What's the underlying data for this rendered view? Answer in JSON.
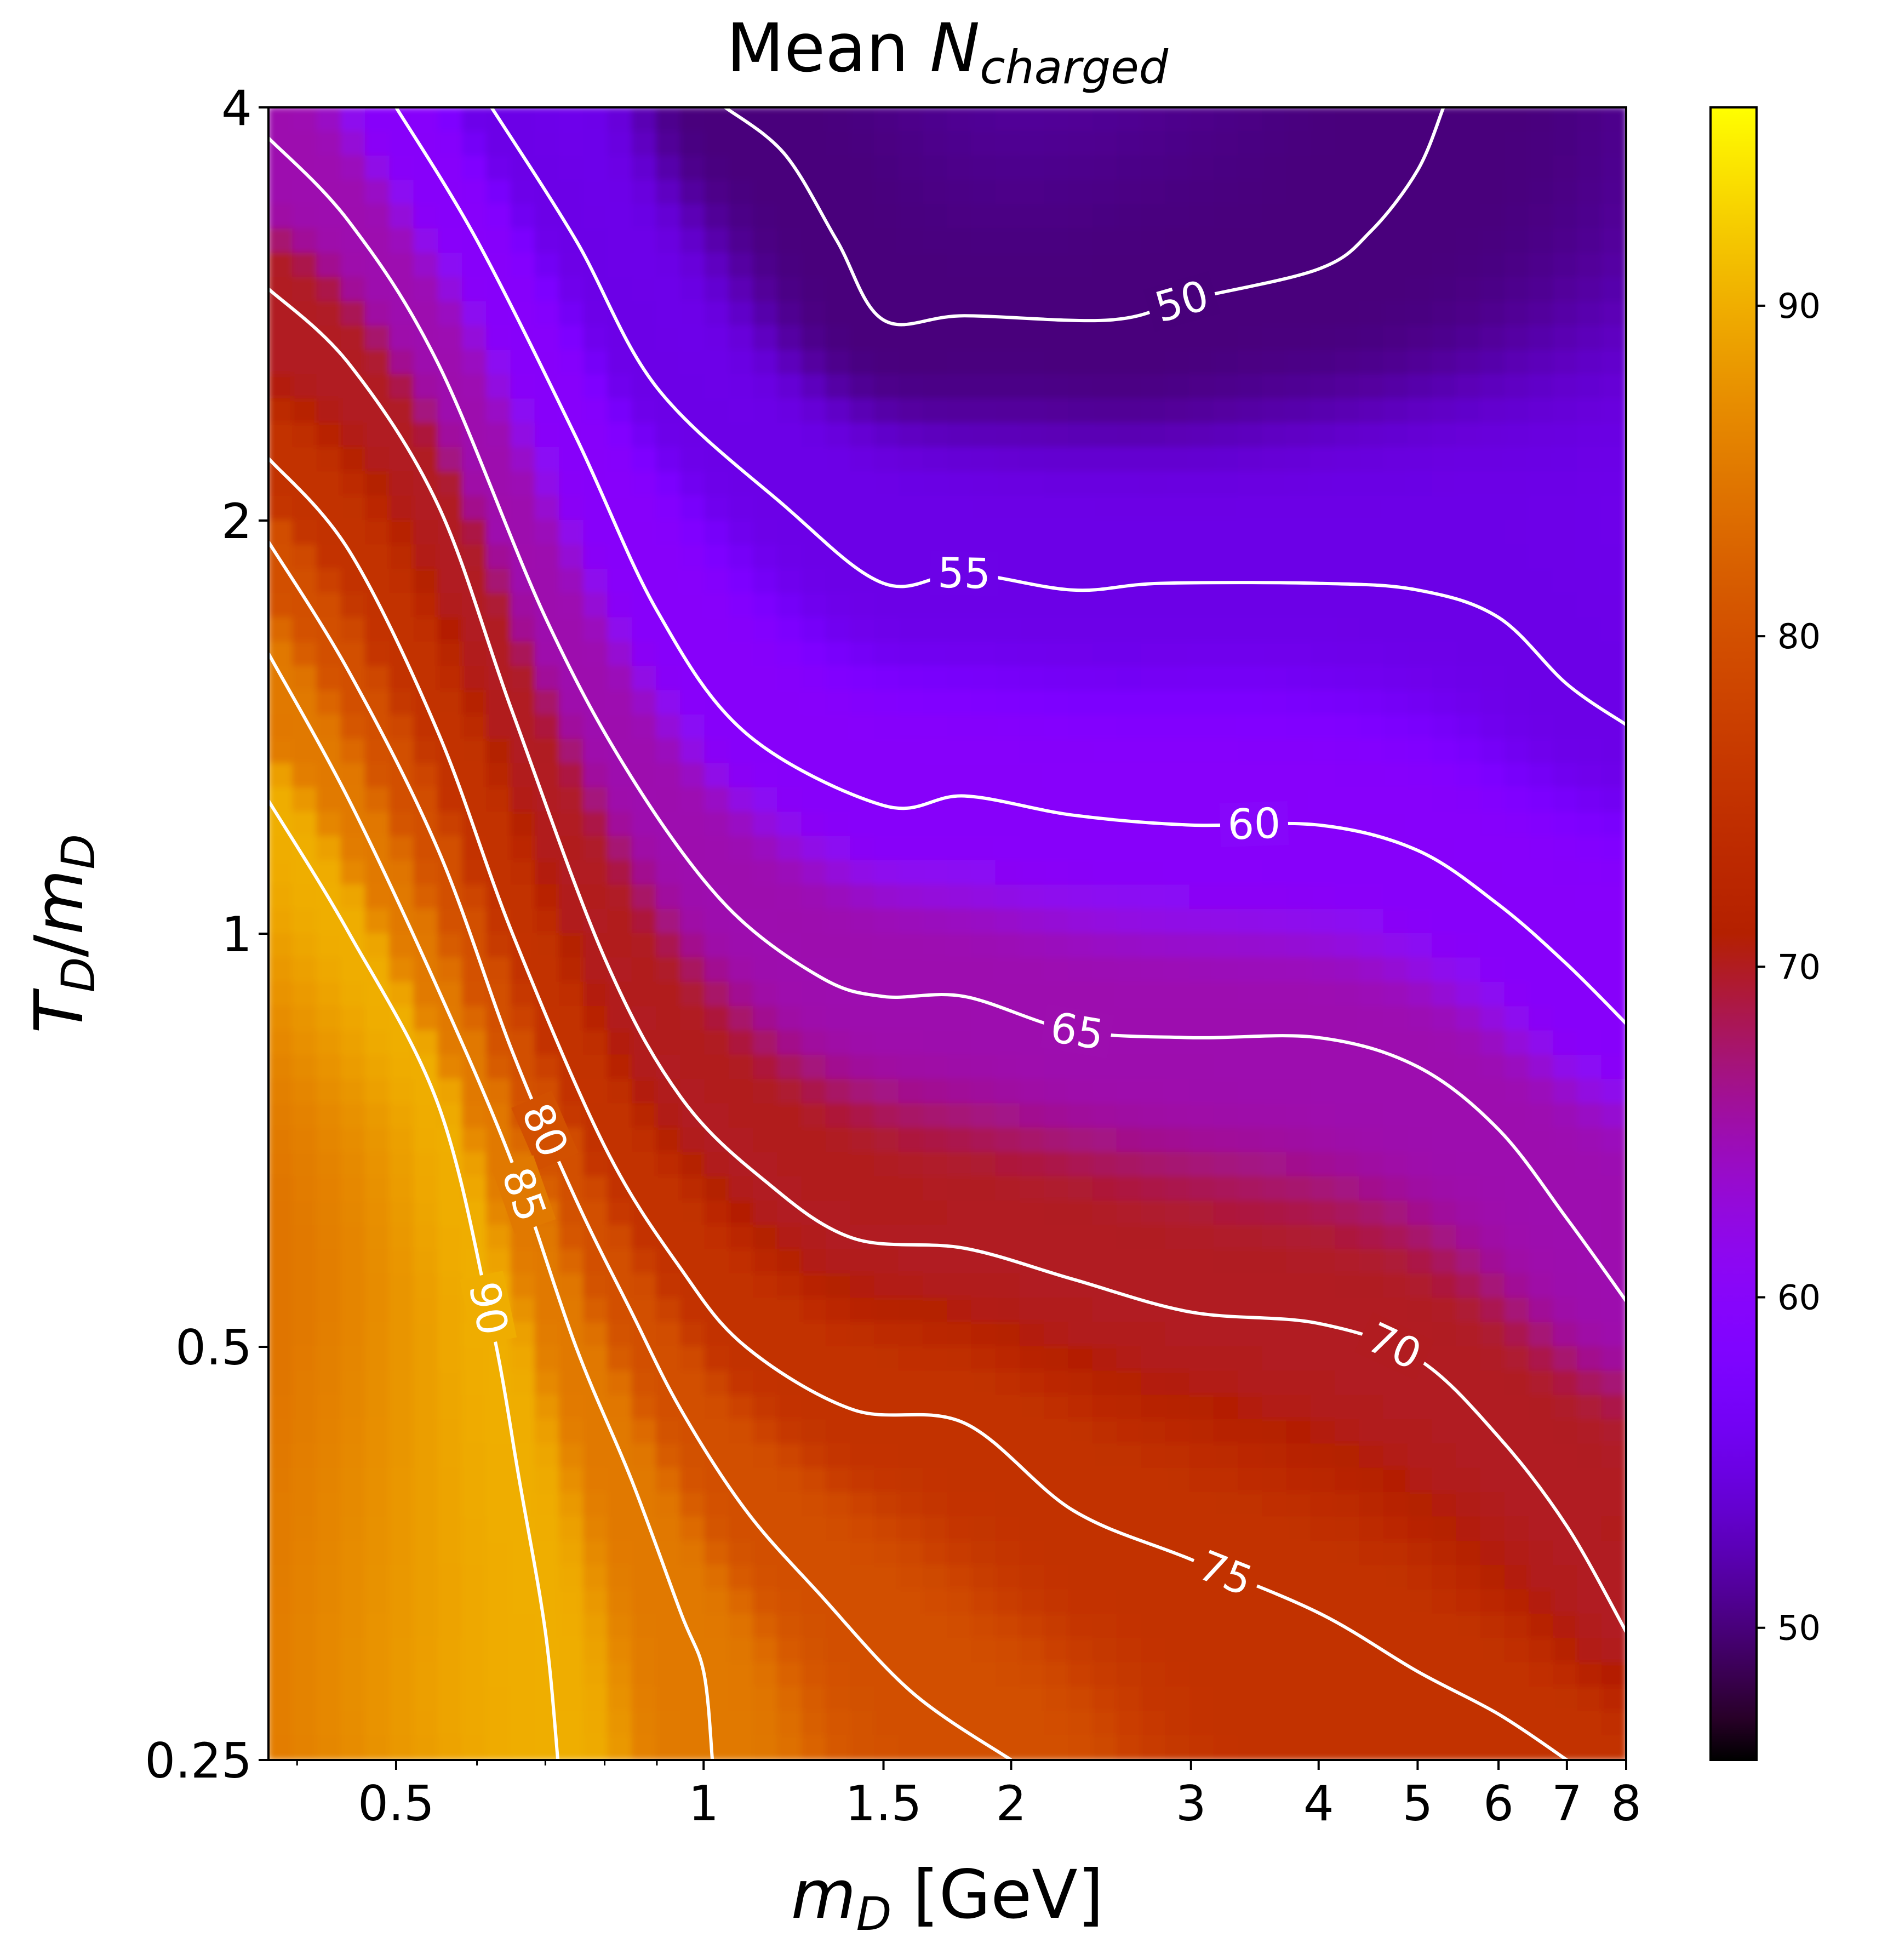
{
  "chart_data": {
    "type": "heatmap",
    "title_main": "Mean ",
    "title_var": "N",
    "title_sub": "charged",
    "xlabel_var": "m",
    "xlabel_sub": "D",
    "xlabel_unit": " [GeV]",
    "ylabel_var_t": "T",
    "ylabel_sub_t": "D",
    "ylabel_slash": "/",
    "ylabel_var_m": "m",
    "ylabel_sub_m": "D",
    "x_scale": "log",
    "y_scale": "log",
    "xlim": [
      0.375,
      8.0
    ],
    "ylim": [
      0.25,
      4.0
    ],
    "x_ticks": [
      {
        "value": 0.5,
        "label": "0.5"
      },
      {
        "value": 1,
        "label": "1"
      },
      {
        "value": 1.5,
        "label": "1.5"
      },
      {
        "value": 2,
        "label": "2"
      },
      {
        "value": 3,
        "label": "3"
      },
      {
        "value": 4,
        "label": "4"
      },
      {
        "value": 5,
        "label": "5"
      },
      {
        "value": 6,
        "label": "6"
      },
      {
        "value": 7,
        "label": "7"
      },
      {
        "value": 8,
        "label": "8"
      }
    ],
    "x_minor_ticks": [
      0.4,
      0.6,
      0.7,
      0.8,
      0.9
    ],
    "y_ticks": [
      {
        "value": 0.25,
        "label": "0.25"
      },
      {
        "value": 0.5,
        "label": "0.5"
      },
      {
        "value": 1,
        "label": "1"
      },
      {
        "value": 2,
        "label": "2"
      },
      {
        "value": 4,
        "label": "4"
      }
    ],
    "colormap": "gnuplot",
    "colorbar_range": [
      46,
      96
    ],
    "colorbar_ticks": [
      {
        "value": 50,
        "label": "50"
      },
      {
        "value": 60,
        "label": "60"
      },
      {
        "value": 70,
        "label": "70"
      },
      {
        "value": 80,
        "label": "80"
      },
      {
        "value": 90,
        "label": "90"
      }
    ],
    "contour_color": "#ffffff",
    "contours": [
      {
        "level": 50,
        "label": "50",
        "points": [
          [
            1.05,
            4.0
          ],
          [
            1.2,
            3.7
          ],
          [
            1.35,
            3.2
          ],
          [
            1.5,
            2.8
          ],
          [
            1.8,
            2.82
          ],
          [
            2.5,
            2.8
          ],
          [
            3.0,
            2.9
          ],
          [
            4.0,
            3.05
          ],
          [
            4.5,
            3.25
          ],
          [
            5.0,
            3.6
          ],
          [
            5.3,
            4.0
          ]
        ]
      },
      {
        "level": 55,
        "label": "55",
        "points": [
          [
            0.62,
            4.0
          ],
          [
            0.75,
            3.2
          ],
          [
            0.9,
            2.5
          ],
          [
            1.2,
            2.05
          ],
          [
            1.5,
            1.8
          ],
          [
            1.8,
            1.83
          ],
          [
            2.3,
            1.78
          ],
          [
            2.8,
            1.8
          ],
          [
            4.0,
            1.8
          ],
          [
            5.0,
            1.78
          ],
          [
            6.0,
            1.7
          ],
          [
            7.0,
            1.52
          ],
          [
            8.0,
            1.42
          ]
        ]
      },
      {
        "level": 60,
        "label": "60",
        "points": [
          [
            0.5,
            4.0
          ],
          [
            0.6,
            3.2
          ],
          [
            0.75,
            2.3
          ],
          [
            0.9,
            1.72
          ],
          [
            1.1,
            1.4
          ],
          [
            1.5,
            1.24
          ],
          [
            1.8,
            1.26
          ],
          [
            2.3,
            1.22
          ],
          [
            3.0,
            1.2
          ],
          [
            4.0,
            1.2
          ],
          [
            5.0,
            1.15
          ],
          [
            6.0,
            1.05
          ],
          [
            7.0,
            0.95
          ],
          [
            8.0,
            0.86
          ]
        ]
      },
      {
        "level": 65,
        "label": "65",
        "points": [
          [
            0.375,
            3.8
          ],
          [
            0.45,
            3.3
          ],
          [
            0.55,
            2.6
          ],
          [
            0.7,
            1.7
          ],
          [
            0.85,
            1.3
          ],
          [
            1.05,
            1.05
          ],
          [
            1.3,
            0.93
          ],
          [
            1.5,
            0.9
          ],
          [
            1.8,
            0.9
          ],
          [
            2.3,
            0.85
          ],
          [
            3.0,
            0.84
          ],
          [
            4.0,
            0.84
          ],
          [
            5.0,
            0.8
          ],
          [
            6.0,
            0.72
          ],
          [
            7.0,
            0.62
          ],
          [
            8.0,
            0.54
          ]
        ]
      },
      {
        "level": 70,
        "label": "70",
        "points": [
          [
            0.375,
            2.95
          ],
          [
            0.45,
            2.6
          ],
          [
            0.55,
            2.05
          ],
          [
            0.65,
            1.45
          ],
          [
            0.8,
            0.96
          ],
          [
            0.95,
            0.76
          ],
          [
            1.15,
            0.66
          ],
          [
            1.4,
            0.6
          ],
          [
            1.8,
            0.59
          ],
          [
            2.3,
            0.56
          ],
          [
            3.0,
            0.53
          ],
          [
            4.0,
            0.52
          ],
          [
            5.0,
            0.49
          ],
          [
            6.0,
            0.43
          ],
          [
            7.0,
            0.37
          ],
          [
            8.0,
            0.31
          ]
        ]
      },
      {
        "level": 75,
        "label": "75",
        "points": [
          [
            0.375,
            2.22
          ],
          [
            0.45,
            1.9
          ],
          [
            0.55,
            1.4
          ],
          [
            0.65,
            1.0
          ],
          [
            0.8,
            0.7
          ],
          [
            0.95,
            0.57
          ],
          [
            1.1,
            0.5
          ],
          [
            1.4,
            0.45
          ],
          [
            1.8,
            0.44
          ],
          [
            2.3,
            0.38
          ],
          [
            3.0,
            0.35
          ],
          [
            4.0,
            0.32
          ],
          [
            5.0,
            0.29
          ],
          [
            6.0,
            0.27
          ],
          [
            7.0,
            0.25
          ]
        ]
      },
      {
        "level": 80,
        "label": "80",
        "points": [
          [
            0.375,
            1.93
          ],
          [
            0.45,
            1.55
          ],
          [
            0.55,
            1.15
          ],
          [
            0.65,
            0.82
          ],
          [
            0.75,
            0.64
          ],
          [
            0.85,
            0.53
          ],
          [
            0.95,
            0.45
          ],
          [
            1.1,
            0.38
          ],
          [
            1.3,
            0.33
          ],
          [
            1.6,
            0.28
          ],
          [
            2.0,
            0.25
          ]
        ]
      },
      {
        "level": 85,
        "label": "85",
        "points": [
          [
            0.375,
            1.6
          ],
          [
            0.45,
            1.25
          ],
          [
            0.55,
            0.91
          ],
          [
            0.65,
            0.68
          ],
          [
            0.75,
            0.5
          ],
          [
            0.85,
            0.4
          ],
          [
            0.95,
            0.32
          ],
          [
            1.0,
            0.29
          ],
          [
            1.02,
            0.25
          ]
        ]
      },
      {
        "level": 90,
        "label": "90",
        "points": [
          [
            0.375,
            1.25
          ],
          [
            0.45,
            1.0
          ],
          [
            0.55,
            0.75
          ],
          [
            0.62,
            0.52
          ],
          [
            0.66,
            0.4
          ],
          [
            0.7,
            0.31
          ],
          [
            0.72,
            0.25
          ]
        ]
      }
    ]
  }
}
